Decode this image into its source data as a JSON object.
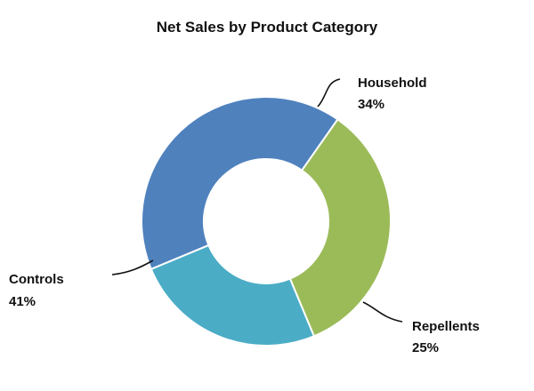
{
  "chart_data": {
    "type": "pie",
    "title": "Net Sales by Product Category",
    "donut": true,
    "slices": [
      {
        "label": "Household",
        "value": 34,
        "value_label": "34%",
        "color": "#9bbb59"
      },
      {
        "label": "Repellents",
        "value": 25,
        "value_label": "25%",
        "color": "#4bacc6"
      },
      {
        "label": "Controls",
        "value": 41,
        "value_label": "41%",
        "color": "#4f81bd"
      }
    ]
  }
}
